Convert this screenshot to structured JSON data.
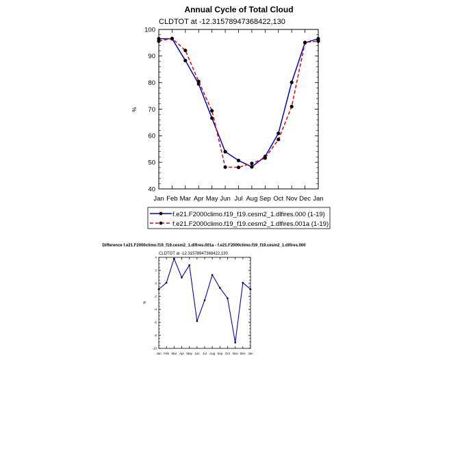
{
  "chart_data": [
    {
      "type": "line",
      "title": "Annual Cycle of Total Cloud",
      "subtitle": "CLDTOT at -12.31578947368422,130",
      "xlabel": "",
      "ylabel": "%",
      "ylim": [
        40,
        100
      ],
      "yticks": [
        "40",
        "50",
        "60",
        "70",
        "80",
        "90",
        "100"
      ],
      "categories": [
        "Jan",
        "Feb",
        "Mar",
        "Apr",
        "May",
        "Jun",
        "Jul",
        "Aug",
        "Sep",
        "Oct",
        "Nov",
        "Dec",
        "Jan"
      ],
      "legend_position": "bottom",
      "series": [
        {
          "name": "f.e21.F2000climo.f19_f19.cesm2_1.dlfires.000 (1-19)",
          "color": "#0000cc",
          "style": "solid",
          "values": [
            96.5,
            96.5,
            88.3,
            79.5,
            66.6,
            54.0,
            50.7,
            48.3,
            52.2,
            60.9,
            80.1,
            95.0,
            96.5
          ]
        },
        {
          "name": "f.e21.F2000climo.f19_f19.cesm2_1.dlfires.001a (1-19)",
          "color": "#e00000",
          "style": "dashed",
          "values": [
            95.6,
            96.6,
            92.1,
            80.4,
            69.4,
            48.2,
            48.1,
            49.6,
            51.6,
            58.6,
            71.0,
            95.1,
            95.6
          ]
        }
      ]
    },
    {
      "type": "line",
      "title": "Difference f.e21.F2000climo.f19_f19.cesm2_1.dlfires.001a - f.e21.F2000climo.f19_f19.cesm2_1.dlfires.000",
      "subtitle": "CLDTOT at -12.31578947368422,130",
      "xlabel": "",
      "ylabel": "%",
      "ylim": [
        -10,
        4
      ],
      "yticks": [
        "-10",
        "-8",
        "-6",
        "-4",
        "-2",
        "0",
        "2",
        "4"
      ],
      "categories": [
        "Jan",
        "Feb",
        "Mar",
        "Apr",
        "May",
        "Jun",
        "Jul",
        "Aug",
        "Sep",
        "Oct",
        "Nov",
        "Dec",
        "Jan"
      ],
      "series": [
        {
          "name": "Difference",
          "color": "#0000cc",
          "style": "solid",
          "values": [
            -0.9,
            0.1,
            3.8,
            0.9,
            2.8,
            -5.8,
            -2.6,
            1.3,
            -0.7,
            -2.3,
            -9.1,
            0.1,
            -0.9
          ]
        }
      ]
    }
  ]
}
